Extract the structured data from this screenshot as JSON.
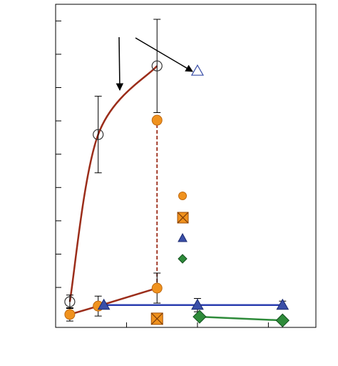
{
  "chart_data": {
    "type": "scatter",
    "xlim": [
      0,
      3.67
    ],
    "xticks": [
      1,
      2,
      3
    ],
    "ylim": [
      -0.2,
      9.5
    ],
    "yticks": [
      1,
      2,
      3,
      4,
      5,
      6,
      7,
      8,
      9
    ],
    "series": [
      {
        "marker": "circle-open",
        "color": "#333333",
        "line_color": "#9b2d1a",
        "line": "smooth",
        "x": [
          0.2,
          0.6,
          1.43
        ],
        "values": [
          0.57,
          5.59,
          7.65
        ],
        "errors": [
          0.2,
          1.15,
          1.4
        ]
      },
      {
        "marker": "circle",
        "color": "#f0921e",
        "line_color": "#9b2d1a",
        "line": "smooth",
        "x": [
          0.2,
          0.6,
          1.43,
          1.43
        ],
        "values": [
          0.19,
          0.44,
          0.98,
          6.02
        ],
        "errors": [
          0.2,
          0.3,
          0.45,
          null
        ]
      },
      {
        "marker": "triangle",
        "color": "#3a4fa8",
        "line_color": "#2b3eb0",
        "line": "straight",
        "x": [
          0.68,
          2.0,
          3.2
        ],
        "values": [
          0.47,
          0.47,
          0.47
        ],
        "errors": [
          null,
          0.2,
          0.12
        ]
      },
      {
        "marker": "diamond",
        "color": "#2e8b3a",
        "line_color": "#2e8b3a",
        "line": "straight",
        "x": [
          2.03,
          3.2
        ],
        "values": [
          0.12,
          0.01
        ]
      },
      {
        "marker": "square-x",
        "color": "#f0921e",
        "x": [
          1.43
        ],
        "values": [
          0.06
        ]
      },
      {
        "marker": "triangle-open",
        "color": "#3a4fa8",
        "x": [
          2.0
        ],
        "values": [
          7.5
        ]
      }
    ]
  }
}
